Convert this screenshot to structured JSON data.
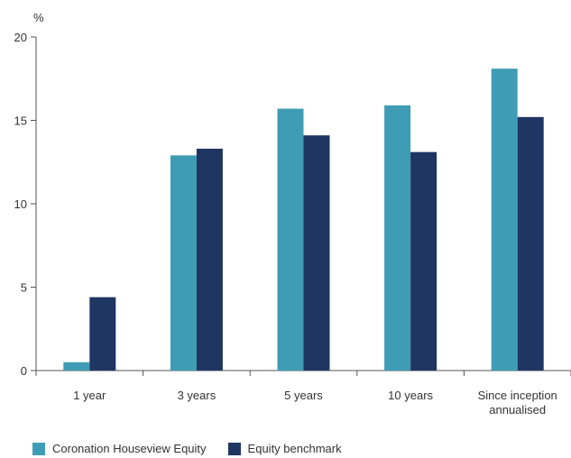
{
  "chart_data": {
    "type": "bar",
    "ylabel": "%",
    "ylim": [
      0,
      20
    ],
    "yticks": [
      0,
      5,
      10,
      15,
      20
    ],
    "categories": [
      [
        "1 year"
      ],
      [
        "3 years"
      ],
      [
        "5 years"
      ],
      [
        "10 years"
      ],
      [
        "Since inception",
        "annualised"
      ]
    ],
    "series": [
      {
        "name": "Coronation Houseview Equity",
        "color": "#3f9cb5",
        "values": [
          0.5,
          12.9,
          15.7,
          15.9,
          18.1
        ]
      },
      {
        "name": "Equity benchmark",
        "color": "#1f3562",
        "values": [
          4.4,
          13.3,
          14.1,
          13.1,
          15.2
        ]
      }
    ],
    "grid": false,
    "legend": "bottom-left"
  }
}
